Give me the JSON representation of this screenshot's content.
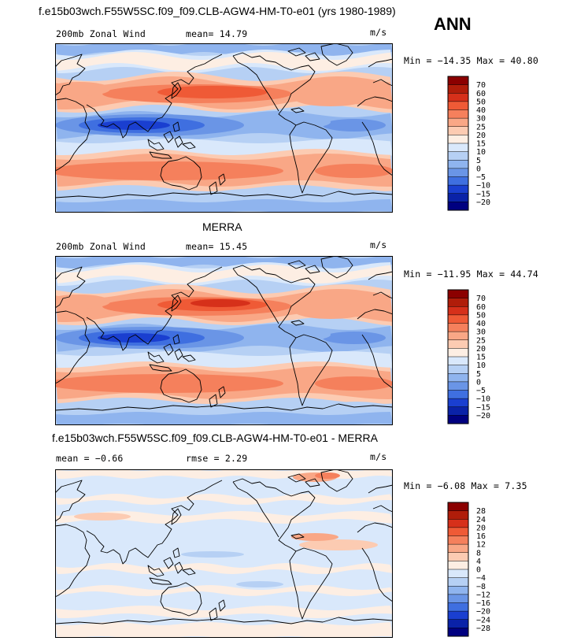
{
  "header": {
    "title": "f.e15b03wch.F55W5SC.f09_f09.CLB-AGW4-HM-T0-e01 (yrs 1980-1989)",
    "season": "ANN"
  },
  "chart_data": [
    {
      "type": "heatmap",
      "title": "",
      "variable": "200mb Zonal Wind",
      "units": "m/s",
      "stat_text": "mean=  14.79",
      "mean": 14.79,
      "min": -14.35,
      "max": 40.8,
      "minmax_text": "Min = −14.35 Max =  40.80",
      "colorbar": {
        "levels": [
          "70",
          "60",
          "50",
          "40",
          "30",
          "25",
          "20",
          "15",
          "10",
          "5",
          "0",
          "−5",
          "−10",
          "−15",
          "−20"
        ],
        "colors": [
          "#8b0000",
          "#b01d0a",
          "#d6301a",
          "#ef5a36",
          "#f5805c",
          "#f9a786",
          "#fccbb2",
          "#fdeee3",
          "#d9e8fb",
          "#b6d0f4",
          "#8fb4ee",
          "#6a95e6",
          "#3f6fe0",
          "#1a3fd0",
          "#0a22a8",
          "#000080"
        ]
      }
    },
    {
      "type": "heatmap",
      "title": "MERRA",
      "variable": "200mb Zonal Wind",
      "units": "m/s",
      "stat_text": "mean=  15.45",
      "mean": 15.45,
      "min": -11.95,
      "max": 44.74,
      "minmax_text": "Min = −11.95 Max =  44.74",
      "colorbar": {
        "levels": [
          "70",
          "60",
          "50",
          "40",
          "30",
          "25",
          "20",
          "15",
          "10",
          "5",
          "0",
          "−5",
          "−10",
          "−15",
          "−20"
        ],
        "colors": [
          "#8b0000",
          "#b01d0a",
          "#d6301a",
          "#ef5a36",
          "#f5805c",
          "#f9a786",
          "#fccbb2",
          "#fdeee3",
          "#d9e8fb",
          "#b6d0f4",
          "#8fb4ee",
          "#6a95e6",
          "#3f6fe0",
          "#1a3fd0",
          "#0a22a8",
          "#000080"
        ]
      }
    },
    {
      "type": "heatmap",
      "title": "f.e15b03wch.F55W5SC.f09_f09.CLB-AGW4-HM-T0-e01 - MERRA",
      "variable": "",
      "units": "m/s",
      "stat_text": "mean =   −0.66",
      "rmse_text": "rmse =    2.29",
      "mean": -0.66,
      "rmse": 2.29,
      "min": -6.08,
      "max": 7.35,
      "minmax_text": "Min =  −6.08 Max =   7.35",
      "colorbar": {
        "levels": [
          "28",
          "24",
          "20",
          "16",
          "12",
          "8",
          "4",
          "0",
          "−4",
          "−8",
          "−12",
          "−16",
          "−20",
          "−24",
          "−28"
        ],
        "colors": [
          "#8b0000",
          "#b01d0a",
          "#d6301a",
          "#ef5a36",
          "#f5805c",
          "#f9a786",
          "#fccbb2",
          "#fdeee3",
          "#d9e8fb",
          "#b6d0f4",
          "#8fb4ee",
          "#6a95e6",
          "#3f6fe0",
          "#1a3fd0",
          "#0a22a8",
          "#000080"
        ]
      }
    }
  ]
}
